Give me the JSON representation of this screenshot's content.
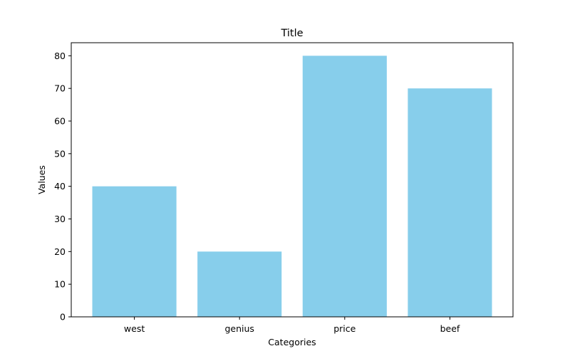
{
  "chart_data": {
    "type": "bar",
    "title": "Title",
    "xlabel": "Categories",
    "ylabel": "Values",
    "categories": [
      "west",
      "genius",
      "price",
      "beef"
    ],
    "values": [
      40,
      20,
      80,
      70
    ],
    "ylim": [
      0,
      84
    ],
    "yticks": [
      0,
      10,
      20,
      30,
      40,
      50,
      60,
      70,
      80
    ],
    "bar_color": "#87ceeb",
    "grid": false,
    "legend": "none"
  }
}
